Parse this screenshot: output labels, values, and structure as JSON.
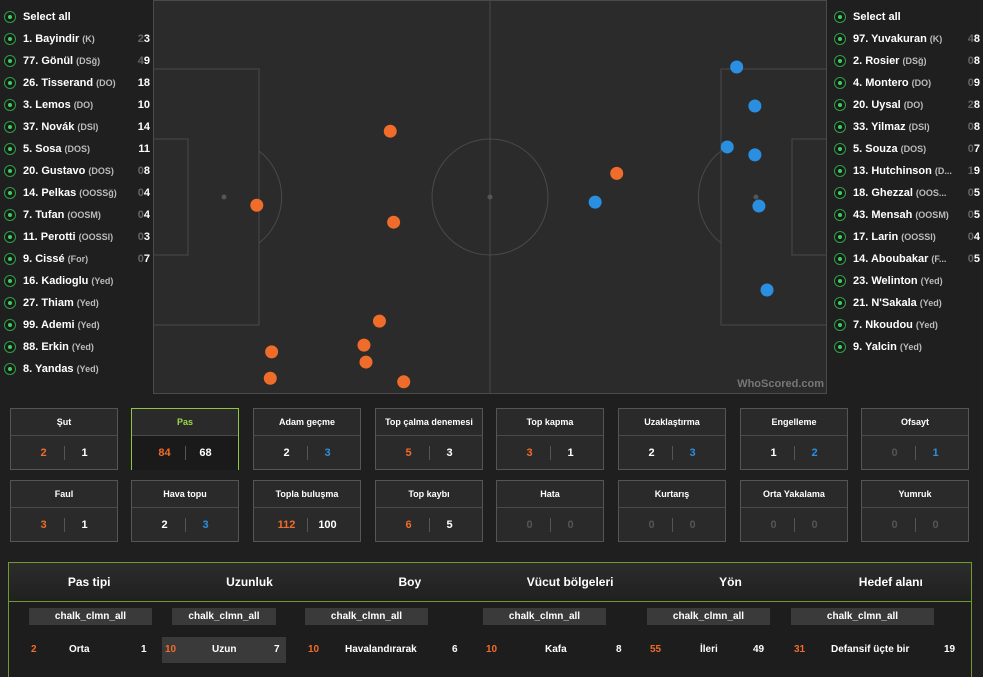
{
  "left_players": {
    "select_all": "Select all",
    "items": [
      {
        "name": "1. Bayindir",
        "pos": "(K)",
        "num_dim": "2",
        "num": "3"
      },
      {
        "name": "77. Gönül",
        "pos": "(DSğ)",
        "num_dim": "4",
        "num": "9"
      },
      {
        "name": "26. Tisserand",
        "pos": "(DO)",
        "num_dim": "",
        "num": "18"
      },
      {
        "name": "3. Lemos",
        "pos": "(DO)",
        "num_dim": "",
        "num": "10"
      },
      {
        "name": "37. Novák",
        "pos": "(DSl)",
        "num_dim": "",
        "num": "14"
      },
      {
        "name": "5. Sosa",
        "pos": "(DOS)",
        "num_dim": "",
        "num": "11"
      },
      {
        "name": "20. Gustavo",
        "pos": "(DOS)",
        "num_dim": "0",
        "num": "8"
      },
      {
        "name": "14. Pelkas",
        "pos": "(OOSSğ)",
        "num_dim": "0",
        "num": "4"
      },
      {
        "name": "7. Tufan",
        "pos": "(OOSM)",
        "num_dim": "0",
        "num": "4"
      },
      {
        "name": "11. Perotti",
        "pos": "(OOSSl)",
        "num_dim": "0",
        "num": "3"
      },
      {
        "name": "9. Cissé",
        "pos": "(For)",
        "num_dim": "0",
        "num": "7"
      },
      {
        "name": "16. Kadioglu",
        "pos": "(Yed)",
        "num_dim": "",
        "num": ""
      },
      {
        "name": "27. Thiam",
        "pos": "(Yed)",
        "num_dim": "",
        "num": ""
      },
      {
        "name": "99. Ademi",
        "pos": "(Yed)",
        "num_dim": "",
        "num": ""
      },
      {
        "name": "88. Erkin",
        "pos": "(Yed)",
        "num_dim": "",
        "num": ""
      },
      {
        "name": "8. Yandas",
        "pos": "(Yed)",
        "num_dim": "",
        "num": ""
      }
    ]
  },
  "right_players": {
    "select_all": "Select all",
    "items": [
      {
        "name": "97. Yuvakuran",
        "pos": "(K)",
        "num_dim": "4",
        "num": "8"
      },
      {
        "name": "2. Rosier",
        "pos": "(DSğ)",
        "num_dim": "0",
        "num": "8"
      },
      {
        "name": "4. Montero",
        "pos": "(DO)",
        "num_dim": "0",
        "num": "9"
      },
      {
        "name": "20. Uysal",
        "pos": "(DO)",
        "num_dim": "2",
        "num": "8"
      },
      {
        "name": "33. Yilmaz",
        "pos": "(DSl)",
        "num_dim": "0",
        "num": "8"
      },
      {
        "name": "5. Souza",
        "pos": "(DOS)",
        "num_dim": "0",
        "num": "7"
      },
      {
        "name": "13. Hutchinson",
        "pos": "(D...",
        "num_dim": "1",
        "num": "9"
      },
      {
        "name": "18. Ghezzal",
        "pos": "(OOS...",
        "num_dim": "0",
        "num": "5"
      },
      {
        "name": "43. Mensah",
        "pos": "(OOSM)",
        "num_dim": "0",
        "num": "5"
      },
      {
        "name": "17. Larin",
        "pos": "(OOSSl)",
        "num_dim": "0",
        "num": "4"
      },
      {
        "name": "14. Aboubakar",
        "pos": "(F...",
        "num_dim": "0",
        "num": "5"
      },
      {
        "name": "23. Welinton",
        "pos": "(Yed)",
        "num_dim": "",
        "num": ""
      },
      {
        "name": "21. N'Sakala",
        "pos": "(Yed)",
        "num_dim": "",
        "num": ""
      },
      {
        "name": "7. Nkoudou",
        "pos": "(Yed)",
        "num_dim": "",
        "num": ""
      },
      {
        "name": "9. Yalcin",
        "pos": "(Yed)",
        "num_dim": "",
        "num": ""
      }
    ]
  },
  "pitch": {
    "logo": "WhoScored.com",
    "colors": {
      "home": "#ef6c2a",
      "away": "#2a8fe0",
      "line": "#4a4a4a",
      "pitch": "#2b2b2b"
    },
    "home_points": [
      [
        0.154,
        0.521
      ],
      [
        0.352,
        0.333
      ],
      [
        0.357,
        0.564
      ],
      [
        0.336,
        0.815
      ],
      [
        0.313,
        0.876
      ],
      [
        0.316,
        0.919
      ],
      [
        0.176,
        0.893
      ],
      [
        0.174,
        0.96
      ],
      [
        0.372,
        0.969
      ],
      [
        0.688,
        0.44
      ]
    ],
    "away_points": [
      [
        0.866,
        0.17
      ],
      [
        0.893,
        0.269
      ],
      [
        0.852,
        0.373
      ],
      [
        0.893,
        0.393
      ],
      [
        0.899,
        0.523
      ],
      [
        0.656,
        0.513
      ],
      [
        0.911,
        0.736
      ]
    ]
  },
  "stats_row1": [
    {
      "title": "Şut",
      "a": "2",
      "b": "1",
      "ca": "c-or",
      "cb": "c-wh",
      "active": false
    },
    {
      "title": "Pas",
      "a": "84",
      "b": "68",
      "ca": "c-or",
      "cb": "c-wh",
      "active": true
    },
    {
      "title": "Adam geçme",
      "a": "2",
      "b": "3",
      "ca": "c-wh",
      "cb": "c-bl",
      "active": false
    },
    {
      "title": "Top çalma denemesi",
      "a": "5",
      "b": "3",
      "ca": "c-or",
      "cb": "c-wh",
      "active": false
    },
    {
      "title": "Top kapma",
      "a": "3",
      "b": "1",
      "ca": "c-or",
      "cb": "c-wh",
      "active": false
    },
    {
      "title": "Uzaklaştırma",
      "a": "2",
      "b": "3",
      "ca": "c-wh",
      "cb": "c-bl",
      "active": false
    },
    {
      "title": "Engelleme",
      "a": "1",
      "b": "2",
      "ca": "c-wh",
      "cb": "c-bl",
      "active": false
    },
    {
      "title": "Ofsayt",
      "a": "0",
      "b": "1",
      "ca": "c-dim",
      "cb": "c-bl",
      "active": false
    }
  ],
  "stats_row2": [
    {
      "title": "Faul",
      "a": "3",
      "b": "1",
      "ca": "c-or",
      "cb": "c-wh",
      "active": false
    },
    {
      "title": "Hava topu",
      "a": "2",
      "b": "3",
      "ca": "c-wh",
      "cb": "c-bl",
      "active": false
    },
    {
      "title": "Topla buluşma",
      "a": "112",
      "b": "100",
      "ca": "c-or",
      "cb": "c-wh",
      "active": false
    },
    {
      "title": "Top kaybı",
      "a": "6",
      "b": "5",
      "ca": "c-or",
      "cb": "c-wh",
      "active": false
    },
    {
      "title": "Hata",
      "a": "0",
      "b": "0",
      "ca": "c-dim",
      "cb": "c-dim",
      "active": false
    },
    {
      "title": "Kurtarış",
      "a": "0",
      "b": "0",
      "ca": "c-dim",
      "cb": "c-dim",
      "active": false
    },
    {
      "title": "Orta Yakalama",
      "a": "0",
      "b": "0",
      "ca": "c-dim",
      "cb": "c-dim",
      "active": false
    },
    {
      "title": "Yumruk",
      "a": "0",
      "b": "0",
      "ca": "c-dim",
      "cb": "c-dim",
      "active": false
    }
  ],
  "panel": {
    "headers": [
      "Pas tipi",
      "Uzunluk",
      "Boy",
      "Vücut bölgeleri",
      "Yön",
      "Hedef alanı"
    ],
    "columns": [
      {
        "filter": "chalk_clmn_all",
        "a": "2",
        "label": "Orta",
        "b": "1",
        "highlight": false
      },
      {
        "filter": "chalk_clmn_all",
        "a": "10",
        "label": "Uzun",
        "b": "7",
        "highlight": true
      },
      {
        "filter": "chalk_clmn_all",
        "a": "10",
        "label": "Havalandırarak",
        "b": "6",
        "highlight": false
      },
      {
        "filter": "chalk_clmn_all",
        "a": "10",
        "label": "Kafa",
        "b": "8",
        "highlight": false
      },
      {
        "filter": "chalk_clmn_all",
        "a": "55",
        "label": "İleri",
        "b": "49",
        "highlight": false
      },
      {
        "filter": "chalk_clmn_all",
        "a": "31",
        "label": "Defansif üçte bir",
        "b": "19",
        "highlight": false
      }
    ]
  }
}
